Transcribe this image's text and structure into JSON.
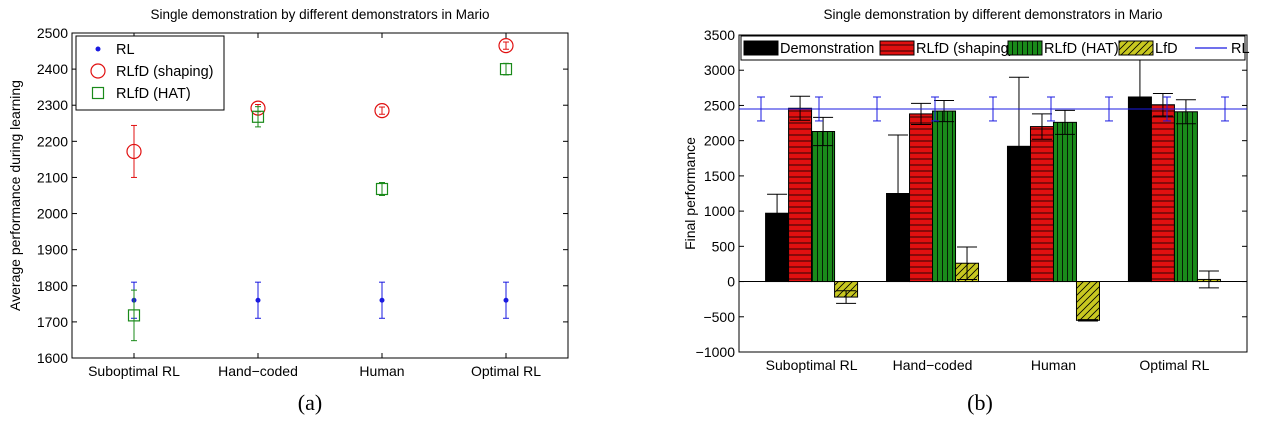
{
  "captions": {
    "a": "(a)",
    "b": "(b)"
  },
  "colors": {
    "rl": "#1a1ae0",
    "shaping": "#e01010",
    "hat": "#1a8a1a",
    "demonstration": "#000000",
    "lfd": "#c8c820"
  },
  "chart_data": [
    {
      "type": "scatter",
      "title": "Single demonstration by different demonstrators in Mario",
      "xlabel": "",
      "ylabel": "Average performance during learning",
      "categories": [
        "Suboptimal RL",
        "Hand−coded",
        "Human",
        "Optimal RL"
      ],
      "ylim": [
        1600,
        2500
      ],
      "yticks": [
        "1600",
        "1700",
        "1800",
        "1900",
        "2000",
        "2100",
        "2200",
        "2300",
        "2400",
        "2500"
      ],
      "legend": "top-left",
      "series": [
        {
          "name": "RL",
          "marker": "dot",
          "color": "#1a1ae0",
          "values": [
            1760,
            1760,
            1760,
            1760
          ],
          "errors": [
            50,
            50,
            50,
            50
          ]
        },
        {
          "name": "RLfD (shaping)",
          "marker": "circle",
          "color": "#e01010",
          "values": [
            2172,
            2292,
            2285,
            2465
          ],
          "errors": [
            72,
            10,
            10,
            10
          ]
        },
        {
          "name": "RLfD (HAT)",
          "marker": "square",
          "color": "#1a8a1a",
          "values": [
            1718,
            2268,
            2068,
            2400
          ],
          "errors": [
            70,
            28,
            18,
            16
          ]
        }
      ]
    },
    {
      "type": "bar",
      "title": "Single demonstration by different demonstrators in Mario",
      "xlabel": "",
      "ylabel": "Final performance",
      "categories": [
        "Suboptimal RL",
        "Hand−coded",
        "Human",
        "Optimal RL"
      ],
      "ylim": [
        -1000,
        3500
      ],
      "yticks": [
        "−1000",
        "−500",
        "0",
        "500",
        "1000",
        "1500",
        "2000",
        "2500",
        "3000",
        "3500"
      ],
      "legend": "top",
      "series": [
        {
          "name": "Demonstration",
          "pattern": "solid",
          "color": "#000000",
          "values": [
            970,
            1250,
            1920,
            2620
          ],
          "errors": [
            270,
            830,
            980,
            700
          ]
        },
        {
          "name": "RLfD (shaping)",
          "pattern": "horizontal-lines",
          "color": "#e01010",
          "values": [
            2460,
            2380,
            2200,
            2510
          ],
          "errors": [
            170,
            150,
            180,
            160
          ]
        },
        {
          "name": "RLfD (HAT)",
          "pattern": "vertical-lines",
          "color": "#1a8a1a",
          "values": [
            2130,
            2420,
            2260,
            2410
          ],
          "errors": [
            200,
            150,
            170,
            170
          ]
        },
        {
          "name": "LfD",
          "pattern": "diagonal-lines",
          "color": "#c8c820",
          "values": [
            -220,
            260,
            -550,
            30
          ],
          "errors": [
            90,
            230,
            10,
            120
          ]
        }
      ],
      "reference_line": {
        "name": "RL",
        "value": 2450,
        "error": 170,
        "color": "#1a1ae0"
      }
    }
  ]
}
